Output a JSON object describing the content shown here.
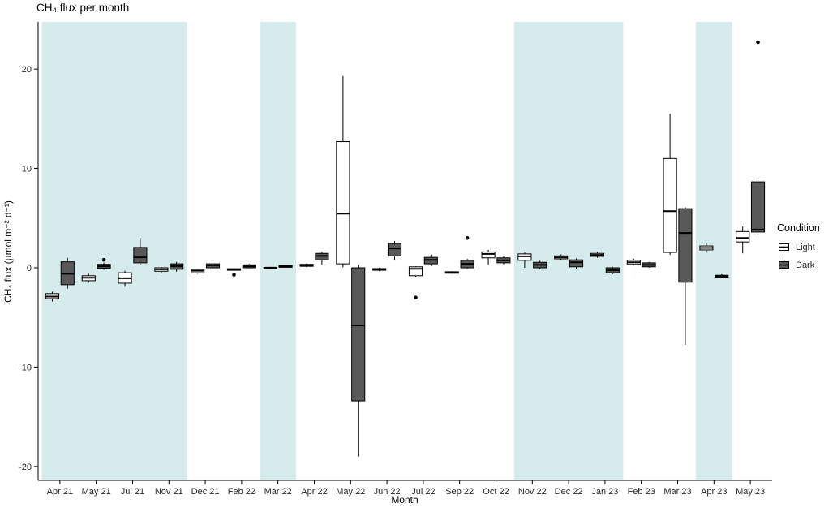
{
  "legend": {
    "title": "Condition"
  },
  "chart_data": {
    "type": "boxplot",
    "title": "CH₄ flux per month",
    "xlabel": "Month",
    "ylabel": "CH₄ flux (μmol m⁻² d⁻¹)",
    "categories": [
      "Apr 21",
      "May 21",
      "Jul 21",
      "Nov 21",
      "Dec 21",
      "Feb 22",
      "Mar 22",
      "Apr 22",
      "May 22",
      "Jun 22",
      "Jul 22",
      "Sep 22",
      "Oct 22",
      "Nov 22",
      "Dec 22",
      "Jan 23",
      "Feb 23",
      "Mar 23",
      "Apr 23",
      "May 23"
    ],
    "ylim": [
      -21.4,
      24.75
    ],
    "yticks": [
      -20,
      -10,
      0,
      10,
      20
    ],
    "grid": "off",
    "legend_position": "right",
    "band_color": "#d5ebec",
    "bands": [
      {
        "from": "Apr 21",
        "to": "Nov 21"
      },
      {
        "from": "Mar 22",
        "to": "Mar 22"
      },
      {
        "from": "Nov 22",
        "to": "Jan 23"
      },
      {
        "from": "Apr 23",
        "to": "Apr 23"
      }
    ],
    "box_stats_format": [
      "whisker_low",
      "q1",
      "median",
      "q3",
      "whisker_high"
    ],
    "series": [
      {
        "name": "Light",
        "fill": "#ffffff",
        "boxes": [
          [
            -3.4,
            -3.1,
            -2.9,
            -2.6,
            -2.4
          ],
          [
            -1.5,
            -1.3,
            -1.0,
            -0.8,
            -0.6
          ],
          [
            -1.9,
            -1.55,
            -1.05,
            -0.5,
            -0.3
          ],
          [
            -0.55,
            -0.35,
            -0.15,
            0.0,
            0.1
          ],
          [
            -0.6,
            -0.5,
            -0.3,
            -0.15,
            -0.1
          ],
          [
            -0.3,
            -0.25,
            -0.15,
            -0.1,
            -0.05
          ],
          [
            -0.15,
            -0.1,
            0.0,
            0.05,
            0.1
          ],
          [
            0.05,
            0.15,
            0.25,
            0.35,
            0.45
          ],
          [
            0.05,
            0.4,
            5.45,
            12.7,
            19.3
          ],
          [
            -0.35,
            -0.25,
            -0.15,
            -0.08,
            0.0
          ],
          [
            -0.9,
            -0.8,
            -0.1,
            0.1,
            0.15
          ],
          [
            -0.6,
            -0.55,
            -0.45,
            -0.4,
            -0.35
          ],
          [
            0.3,
            1.0,
            1.4,
            1.6,
            1.8
          ],
          [
            0.0,
            0.75,
            1.15,
            1.4,
            1.55
          ],
          [
            0.8,
            0.9,
            1.05,
            1.2,
            1.35
          ],
          [
            1.0,
            1.15,
            1.3,
            1.45,
            1.6
          ],
          [
            0.25,
            0.35,
            0.55,
            0.75,
            0.9
          ],
          [
            1.3,
            1.55,
            5.7,
            11.0,
            15.5
          ],
          [
            1.5,
            1.8,
            2.0,
            2.2,
            2.5
          ],
          [
            1.45,
            2.6,
            3.0,
            3.65,
            4.15
          ]
        ],
        "outliers": [
          {
            "category": "Feb 22",
            "value": -0.7
          },
          {
            "category": "Jul 22",
            "value": -3.0
          }
        ]
      },
      {
        "name": "Dark",
        "fill": "#595959",
        "boxes": [
          [
            -2.1,
            -1.7,
            -0.6,
            0.6,
            1.0
          ],
          [
            -0.2,
            -0.05,
            0.15,
            0.35,
            0.5
          ],
          [
            0.25,
            0.5,
            1.05,
            2.05,
            3.0
          ],
          [
            -0.4,
            -0.15,
            0.15,
            0.4,
            0.6
          ],
          [
            -0.1,
            0.0,
            0.25,
            0.4,
            0.55
          ],
          [
            -0.05,
            0.0,
            0.15,
            0.3,
            0.4
          ],
          [
            0.0,
            0.05,
            0.15,
            0.25,
            0.3
          ],
          [
            0.3,
            0.8,
            1.2,
            1.45,
            1.6
          ],
          [
            -19.0,
            -13.4,
            -5.8,
            0.0,
            0.3
          ],
          [
            0.8,
            1.2,
            1.95,
            2.45,
            2.7
          ],
          [
            0.2,
            0.4,
            0.8,
            1.05,
            1.3
          ],
          [
            -0.1,
            0.0,
            0.4,
            0.75,
            0.9
          ],
          [
            0.35,
            0.5,
            0.75,
            1.0,
            1.15
          ],
          [
            -0.15,
            0.0,
            0.3,
            0.55,
            0.7
          ],
          [
            -0.1,
            0.1,
            0.55,
            0.8,
            0.95
          ],
          [
            -0.65,
            -0.5,
            -0.25,
            0.0,
            0.1
          ],
          [
            0.0,
            0.1,
            0.3,
            0.5,
            0.6
          ],
          [
            -7.75,
            -1.45,
            3.5,
            5.95,
            6.1
          ],
          [
            -1.05,
            -0.95,
            -0.85,
            -0.75,
            -0.65
          ],
          [
            3.4,
            3.6,
            3.85,
            8.65,
            8.8
          ]
        ],
        "outliers": [
          {
            "category": "May 21",
            "value": 0.8
          },
          {
            "category": "Sep 22",
            "value": 3.0
          },
          {
            "category": "May 23",
            "value": 22.7
          }
        ]
      }
    ]
  }
}
